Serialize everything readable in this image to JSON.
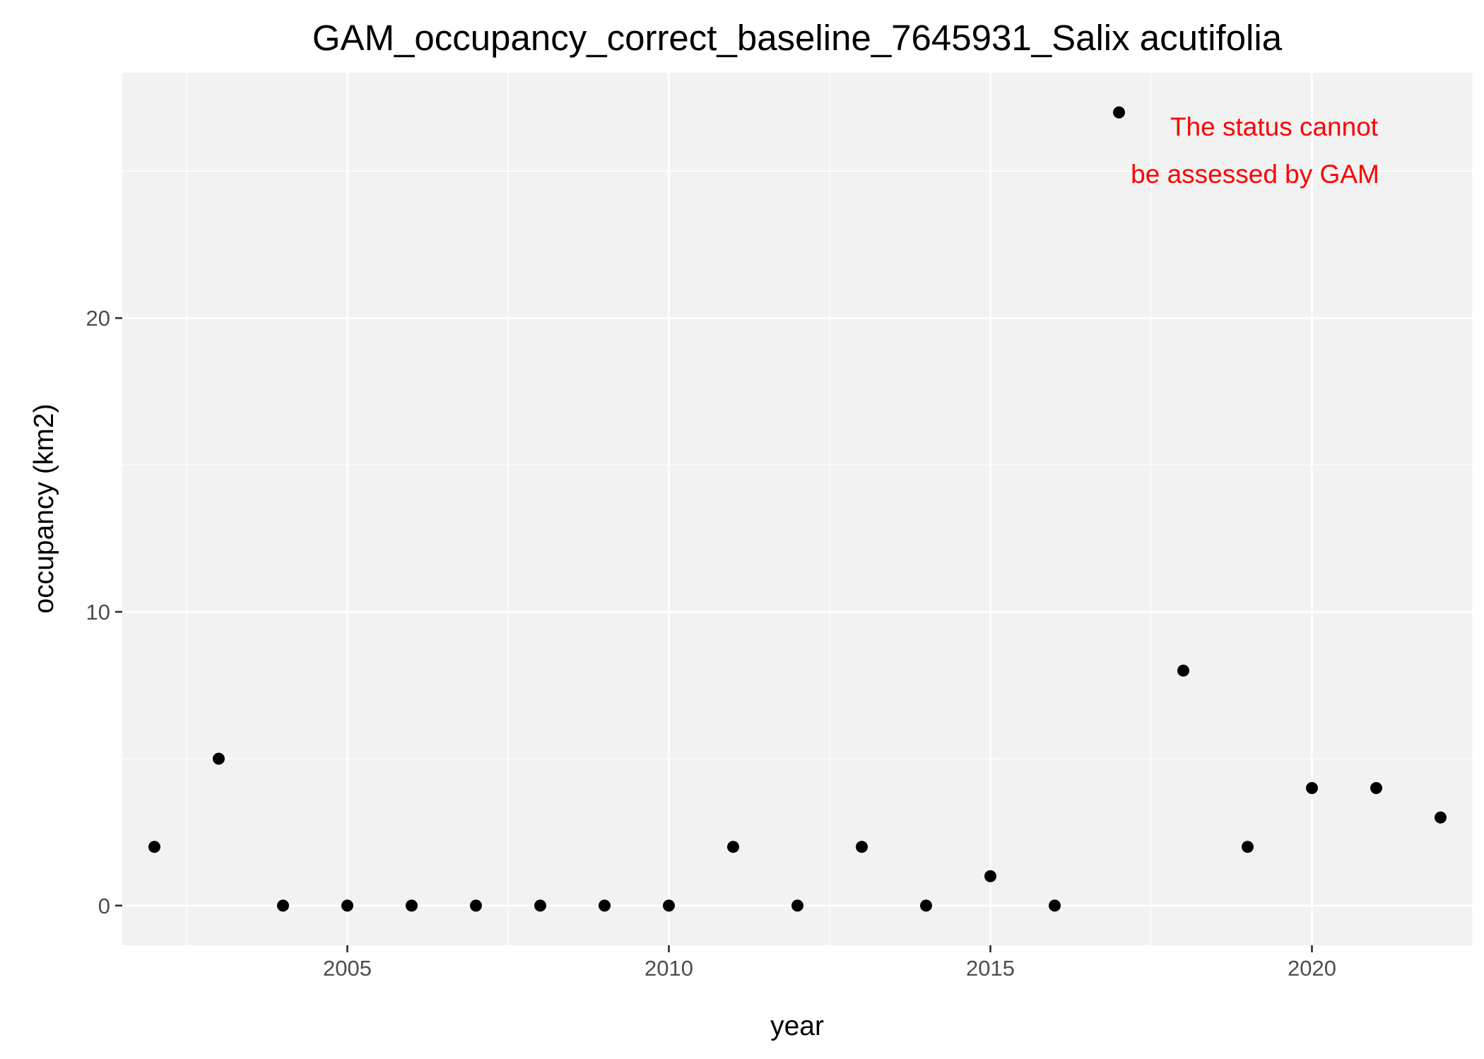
{
  "chart_data": {
    "type": "scatter",
    "title": "GAM_occupancy_correct_baseline_7645931_Salix acutifolia",
    "xlabel": "year",
    "ylabel": "occupancy (km2)",
    "xlim": [
      2001.5,
      2022.5
    ],
    "ylim": [
      -1.35,
      28.35
    ],
    "x_ticks": [
      2005,
      2010,
      2015,
      2020
    ],
    "x_tick_labels": [
      "2005",
      "2010",
      "2015",
      "2020"
    ],
    "y_ticks": [
      0,
      10,
      20
    ],
    "y_tick_labels": [
      "0",
      "10",
      "20"
    ],
    "grid": true,
    "legend": "none",
    "series": [
      {
        "x": [
          2002,
          2003,
          2004,
          2005,
          2006,
          2007,
          2008,
          2009,
          2010,
          2011,
          2012,
          2013,
          2014,
          2015,
          2016,
          2017,
          2018,
          2019,
          2020,
          2021,
          2022
        ],
        "values": [
          2,
          5,
          0,
          0,
          0,
          0,
          0,
          0,
          0,
          2,
          0,
          2,
          0,
          1,
          0,
          27,
          8,
          2,
          4,
          4,
          3
        ]
      }
    ],
    "annotation": {
      "lines": [
        "The status cannot",
        "be assessed by GAM"
      ],
      "color": "#ff0000"
    },
    "colors": {
      "panel_background": "#f2f2f2",
      "grid": "#ffffff",
      "point": "#000000",
      "tick_label": "#4d4d4d"
    }
  }
}
